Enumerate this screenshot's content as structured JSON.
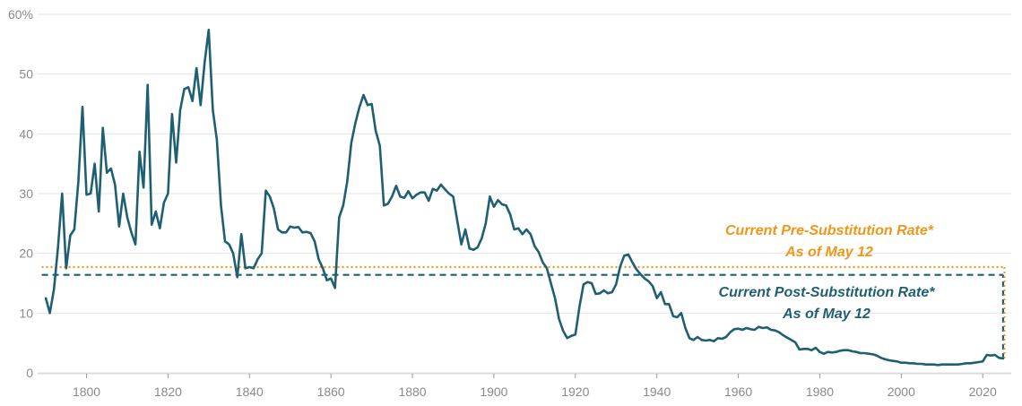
{
  "chart_data": {
    "type": "line",
    "title": "",
    "xlabel": "",
    "ylabel": "",
    "xlim": [
      1788,
      2027
    ],
    "ylim": [
      0,
      60
    ],
    "x_ticks": [
      1800,
      1820,
      1840,
      1860,
      1880,
      1900,
      1920,
      1940,
      1960,
      1980,
      2000,
      2020
    ],
    "y_ticks": [
      {
        "value": 0,
        "label": "0"
      },
      {
        "value": 10,
        "label": "10"
      },
      {
        "value": 20,
        "label": "20"
      },
      {
        "value": 30,
        "label": "30"
      },
      {
        "value": 40,
        "label": "40"
      },
      {
        "value": 50,
        "label": "50"
      },
      {
        "value": 60,
        "label": "60%"
      }
    ],
    "grid": "horizontal",
    "series": [
      {
        "color": "#1f5f74",
        "points": [
          [
            1790,
            12.5
          ],
          [
            1791,
            10
          ],
          [
            1792,
            14
          ],
          [
            1793,
            21
          ],
          [
            1794,
            30
          ],
          [
            1795,
            17.5
          ],
          [
            1796,
            23
          ],
          [
            1797,
            24
          ],
          [
            1798,
            32
          ],
          [
            1799,
            44.5
          ],
          [
            1800,
            29.8
          ],
          [
            1801,
            30
          ],
          [
            1802,
            35
          ],
          [
            1803,
            27
          ],
          [
            1804,
            41
          ],
          [
            1805,
            33.5
          ],
          [
            1806,
            34.2
          ],
          [
            1807,
            31.5
          ],
          [
            1808,
            24.5
          ],
          [
            1809,
            30
          ],
          [
            1810,
            26
          ],
          [
            1811,
            23.5
          ],
          [
            1812,
            21.5
          ],
          [
            1813,
            37
          ],
          [
            1814,
            31
          ],
          [
            1815,
            48.2
          ],
          [
            1816,
            24.8
          ],
          [
            1817,
            27
          ],
          [
            1818,
            24.2
          ],
          [
            1819,
            28.5
          ],
          [
            1820,
            30
          ],
          [
            1821,
            43.3
          ],
          [
            1822,
            35.2
          ],
          [
            1823,
            44
          ],
          [
            1824,
            47.5
          ],
          [
            1825,
            47.8
          ],
          [
            1826,
            45.5
          ],
          [
            1827,
            51
          ],
          [
            1828,
            44.8
          ],
          [
            1829,
            52
          ],
          [
            1830,
            57.4
          ],
          [
            1831,
            44
          ],
          [
            1832,
            39
          ],
          [
            1833,
            28
          ],
          [
            1834,
            22
          ],
          [
            1835,
            21.5
          ],
          [
            1836,
            20
          ],
          [
            1837,
            16
          ],
          [
            1838,
            23.2
          ],
          [
            1839,
            17.5
          ],
          [
            1840,
            17.7
          ],
          [
            1841,
            17.5
          ],
          [
            1842,
            19
          ],
          [
            1843,
            20
          ],
          [
            1844,
            30.5
          ],
          [
            1845,
            29.5
          ],
          [
            1846,
            27.5
          ],
          [
            1847,
            24
          ],
          [
            1848,
            23.5
          ],
          [
            1849,
            23.5
          ],
          [
            1850,
            24.5
          ],
          [
            1851,
            24.3
          ],
          [
            1852,
            24.4
          ],
          [
            1853,
            23.5
          ],
          [
            1854,
            23.6
          ],
          [
            1855,
            23.4
          ],
          [
            1856,
            22
          ],
          [
            1857,
            19
          ],
          [
            1858,
            17.5
          ],
          [
            1859,
            15.5
          ],
          [
            1860,
            15.8
          ],
          [
            1861,
            14.2
          ],
          [
            1862,
            26
          ],
          [
            1863,
            28
          ],
          [
            1864,
            32
          ],
          [
            1865,
            38.5
          ],
          [
            1866,
            41.8
          ],
          [
            1867,
            44.5
          ],
          [
            1868,
            46.5
          ],
          [
            1869,
            44.8
          ],
          [
            1870,
            45
          ],
          [
            1871,
            40.5
          ],
          [
            1872,
            38
          ],
          [
            1873,
            28
          ],
          [
            1874,
            28.3
          ],
          [
            1875,
            29.5
          ],
          [
            1876,
            31.3
          ],
          [
            1877,
            29.5
          ],
          [
            1878,
            29.3
          ],
          [
            1879,
            30.4
          ],
          [
            1880,
            29.2
          ],
          [
            1881,
            29.8
          ],
          [
            1882,
            30.2
          ],
          [
            1883,
            30.2
          ],
          [
            1884,
            28.8
          ],
          [
            1885,
            30.8
          ],
          [
            1886,
            30.5
          ],
          [
            1887,
            31.5
          ],
          [
            1888,
            30.7
          ],
          [
            1889,
            30
          ],
          [
            1890,
            29.5
          ],
          [
            1891,
            25.5
          ],
          [
            1892,
            21.5
          ],
          [
            1893,
            24
          ],
          [
            1894,
            20.8
          ],
          [
            1895,
            20.6
          ],
          [
            1896,
            21
          ],
          [
            1897,
            22.5
          ],
          [
            1898,
            25
          ],
          [
            1899,
            29.5
          ],
          [
            1900,
            27.8
          ],
          [
            1901,
            28.9
          ],
          [
            1902,
            28.2
          ],
          [
            1903,
            28
          ],
          [
            1904,
            26.5
          ],
          [
            1905,
            24
          ],
          [
            1906,
            24.2
          ],
          [
            1907,
            23.2
          ],
          [
            1908,
            24
          ],
          [
            1909,
            23.2
          ],
          [
            1910,
            21.2
          ],
          [
            1911,
            20.2
          ],
          [
            1912,
            18.5
          ],
          [
            1913,
            17.5
          ],
          [
            1914,
            15
          ],
          [
            1915,
            12.5
          ],
          [
            1916,
            9
          ],
          [
            1917,
            7
          ],
          [
            1918,
            5.8
          ],
          [
            1919,
            6.2
          ],
          [
            1920,
            6.4
          ],
          [
            1921,
            11
          ],
          [
            1922,
            14.8
          ],
          [
            1923,
            15.2
          ],
          [
            1924,
            15
          ],
          [
            1925,
            13.2
          ],
          [
            1926,
            13.3
          ],
          [
            1927,
            13.8
          ],
          [
            1928,
            13.3
          ],
          [
            1929,
            13.5
          ],
          [
            1930,
            14.8
          ],
          [
            1931,
            17.8
          ],
          [
            1932,
            19.6
          ],
          [
            1933,
            19.8
          ],
          [
            1934,
            18.5
          ],
          [
            1935,
            17.3
          ],
          [
            1936,
            16.5
          ],
          [
            1937,
            15.8
          ],
          [
            1938,
            15.3
          ],
          [
            1939,
            14.5
          ],
          [
            1940,
            12.5
          ],
          [
            1941,
            13.5
          ],
          [
            1942,
            11.5
          ],
          [
            1943,
            11.5
          ],
          [
            1944,
            9.5
          ],
          [
            1945,
            9.3
          ],
          [
            1946,
            10
          ],
          [
            1947,
            7.5
          ],
          [
            1948,
            5.8
          ],
          [
            1949,
            5.5
          ],
          [
            1950,
            6
          ],
          [
            1951,
            5.5
          ],
          [
            1952,
            5.4
          ],
          [
            1953,
            5.5
          ],
          [
            1954,
            5.3
          ],
          [
            1955,
            5.8
          ],
          [
            1956,
            5.7
          ],
          [
            1957,
            6
          ],
          [
            1958,
            6.8
          ],
          [
            1959,
            7.3
          ],
          [
            1960,
            7.4
          ],
          [
            1961,
            7.2
          ],
          [
            1962,
            7.5
          ],
          [
            1963,
            7.3
          ],
          [
            1964,
            7.2
          ],
          [
            1965,
            7.7
          ],
          [
            1966,
            7.5
          ],
          [
            1967,
            7.6
          ],
          [
            1968,
            7.2
          ],
          [
            1969,
            7.1
          ],
          [
            1970,
            6.8
          ],
          [
            1971,
            6.3
          ],
          [
            1972,
            5.9
          ],
          [
            1973,
            5.5
          ],
          [
            1974,
            5.1
          ],
          [
            1975,
            3.9
          ],
          [
            1976,
            4
          ],
          [
            1977,
            4
          ],
          [
            1978,
            3.8
          ],
          [
            1979,
            4.2
          ],
          [
            1980,
            3.5
          ],
          [
            1981,
            3.2
          ],
          [
            1982,
            3.5
          ],
          [
            1983,
            3.4
          ],
          [
            1984,
            3.5
          ],
          [
            1985,
            3.7
          ],
          [
            1986,
            3.8
          ],
          [
            1987,
            3.8
          ],
          [
            1988,
            3.6
          ],
          [
            1989,
            3.5
          ],
          [
            1990,
            3.3
          ],
          [
            1991,
            3.3
          ],
          [
            1992,
            3.2
          ],
          [
            1993,
            3.1
          ],
          [
            1994,
            2.9
          ],
          [
            1995,
            2.5
          ],
          [
            1996,
            2.3
          ],
          [
            1997,
            2.1
          ],
          [
            1998,
            2
          ],
          [
            1999,
            1.9
          ],
          [
            2000,
            1.7
          ],
          [
            2001,
            1.7
          ],
          [
            2002,
            1.6
          ],
          [
            2003,
            1.6
          ],
          [
            2004,
            1.5
          ],
          [
            2005,
            1.5
          ],
          [
            2006,
            1.4
          ],
          [
            2007,
            1.4
          ],
          [
            2008,
            1.4
          ],
          [
            2009,
            1.3
          ],
          [
            2010,
            1.4
          ],
          [
            2011,
            1.4
          ],
          [
            2012,
            1.4
          ],
          [
            2013,
            1.4
          ],
          [
            2014,
            1.4
          ],
          [
            2015,
            1.5
          ],
          [
            2016,
            1.6
          ],
          [
            2017,
            1.6
          ],
          [
            2018,
            1.7
          ],
          [
            2019,
            1.8
          ],
          [
            2020,
            1.9
          ],
          [
            2021,
            3
          ],
          [
            2022,
            2.9
          ],
          [
            2023,
            3
          ],
          [
            2024,
            2.5
          ],
          [
            2025,
            2.4
          ]
        ]
      }
    ],
    "reference_lines": [
      {
        "value": 17.7,
        "color": "#f0961a",
        "style": "dotted",
        "label": "Current Pre-Substitution Rate*",
        "sublabel": "As of May 12"
      },
      {
        "value": 16.4,
        "color": "#1f5f74",
        "style": "dashed",
        "label": "Current Post-Substitution Rate*",
        "sublabel": "As of May 12"
      }
    ]
  }
}
